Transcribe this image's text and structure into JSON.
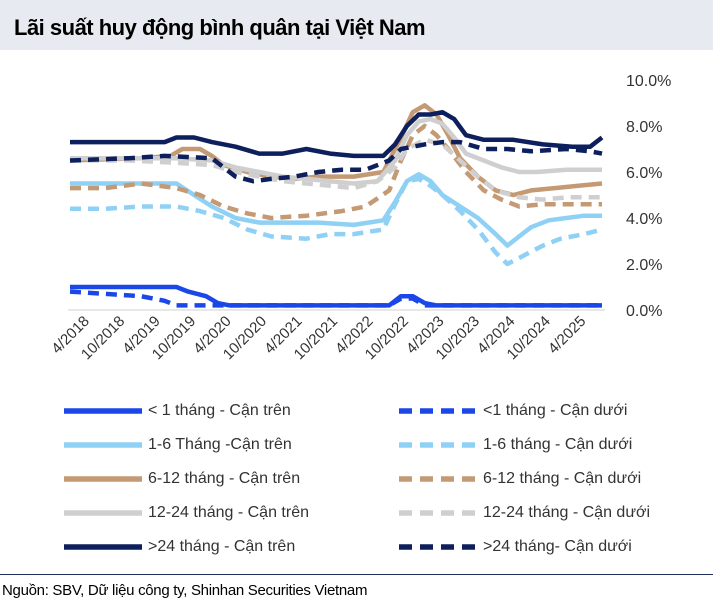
{
  "chart_data": {
    "type": "line",
    "title": "Lãi suất huy động bình quân tại Việt Nam",
    "ylim": [
      0,
      10
    ],
    "y_ticks": [
      "0.0%",
      "2.0%",
      "4.0%",
      "6.0%",
      "8.0%",
      "10.0%"
    ],
    "x_tick_labels": [
      "4/2018",
      "10/2018",
      "4/2019",
      "10/2019",
      "4/2020",
      "10/2020",
      "4/2021",
      "10/2021",
      "4/2022",
      "10/2022",
      "4/2023",
      "10/2023",
      "4/2024",
      "10/2024",
      "4/2025"
    ],
    "x_tick_positions": [
      0,
      6,
      12,
      18,
      24,
      30,
      36,
      42,
      48,
      54,
      60,
      66,
      72,
      78,
      84
    ],
    "x_range": [
      0,
      90
    ],
    "series": [
      {
        "name": "< 1 tháng - Cận trên",
        "color": "#1a47e8",
        "dashed": false,
        "points": [
          [
            0,
            1.0
          ],
          [
            18,
            1.0
          ],
          [
            20,
            0.8
          ],
          [
            23,
            0.6
          ],
          [
            25,
            0.3
          ],
          [
            27,
            0.2
          ],
          [
            54,
            0.2
          ],
          [
            56,
            0.6
          ],
          [
            58,
            0.6
          ],
          [
            60,
            0.3
          ],
          [
            62,
            0.2
          ],
          [
            90,
            0.2
          ]
        ]
      },
      {
        "name": "<1 tháng - Cận dưới",
        "color": "#1a47e8",
        "dashed": true,
        "points": [
          [
            0,
            0.8
          ],
          [
            12,
            0.6
          ],
          [
            16,
            0.4
          ],
          [
            18,
            0.2
          ],
          [
            54,
            0.2
          ],
          [
            56,
            0.5
          ],
          [
            58,
            0.5
          ],
          [
            60,
            0.2
          ],
          [
            90,
            0.2
          ]
        ]
      },
      {
        "name": "1-6 Tháng -Cận trên",
        "color": "#8fd0f5",
        "dashed": false,
        "points": [
          [
            0,
            5.5
          ],
          [
            18,
            5.5
          ],
          [
            21,
            5.0
          ],
          [
            24,
            4.5
          ],
          [
            28,
            4.0
          ],
          [
            32,
            3.8
          ],
          [
            42,
            3.8
          ],
          [
            48,
            3.7
          ],
          [
            53,
            3.9
          ],
          [
            55,
            4.7
          ],
          [
            57,
            5.6
          ],
          [
            59,
            5.9
          ],
          [
            61,
            5.6
          ],
          [
            63,
            5.0
          ],
          [
            66,
            4.5
          ],
          [
            69,
            4.0
          ],
          [
            72,
            3.3
          ],
          [
            74,
            2.8
          ],
          [
            76,
            3.2
          ],
          [
            78,
            3.6
          ],
          [
            81,
            3.9
          ],
          [
            84,
            4.0
          ],
          [
            87,
            4.1
          ],
          [
            90,
            4.1
          ]
        ]
      },
      {
        "name": "1-6 tháng - Cận dưới",
        "color": "#8fd0f5",
        "dashed": true,
        "points": [
          [
            0,
            4.4
          ],
          [
            6,
            4.4
          ],
          [
            12,
            4.5
          ],
          [
            18,
            4.5
          ],
          [
            22,
            4.3
          ],
          [
            26,
            4.0
          ],
          [
            30,
            3.5
          ],
          [
            34,
            3.2
          ],
          [
            40,
            3.1
          ],
          [
            44,
            3.3
          ],
          [
            48,
            3.3
          ],
          [
            53,
            3.5
          ],
          [
            55,
            4.6
          ],
          [
            57,
            5.6
          ],
          [
            59,
            5.7
          ],
          [
            61,
            5.4
          ],
          [
            63,
            5.0
          ],
          [
            66,
            4.3
          ],
          [
            69,
            3.5
          ],
          [
            72,
            2.5
          ],
          [
            74,
            2.0
          ],
          [
            77,
            2.4
          ],
          [
            80,
            2.8
          ],
          [
            83,
            3.1
          ],
          [
            87,
            3.3
          ],
          [
            90,
            3.5
          ]
        ]
      },
      {
        "name": "6-12 tháng - Cận trên",
        "color": "#c49a74",
        "dashed": false,
        "points": [
          [
            0,
            6.5
          ],
          [
            12,
            6.6
          ],
          [
            17,
            6.7
          ],
          [
            19,
            7.0
          ],
          [
            22,
            7.0
          ],
          [
            24,
            6.7
          ],
          [
            26,
            6.3
          ],
          [
            30,
            6.0
          ],
          [
            34,
            5.8
          ],
          [
            38,
            5.7
          ],
          [
            42,
            5.8
          ],
          [
            48,
            5.8
          ],
          [
            53,
            6.0
          ],
          [
            56,
            7.5
          ],
          [
            58,
            8.6
          ],
          [
            60,
            8.9
          ],
          [
            62,
            8.5
          ],
          [
            64,
            7.6
          ],
          [
            66,
            6.6
          ],
          [
            69,
            5.8
          ],
          [
            72,
            5.2
          ],
          [
            75,
            5.0
          ],
          [
            78,
            5.2
          ],
          [
            82,
            5.3
          ],
          [
            86,
            5.4
          ],
          [
            90,
            5.5
          ]
        ]
      },
      {
        "name": "6-12 tháng - Cận dưới",
        "color": "#c49a74",
        "dashed": true,
        "points": [
          [
            0,
            5.3
          ],
          [
            6,
            5.3
          ],
          [
            12,
            5.5
          ],
          [
            18,
            5.3
          ],
          [
            22,
            5.0
          ],
          [
            26,
            4.5
          ],
          [
            30,
            4.2
          ],
          [
            34,
            4.0
          ],
          [
            40,
            4.1
          ],
          [
            46,
            4.3
          ],
          [
            50,
            4.5
          ],
          [
            54,
            5.2
          ],
          [
            56,
            6.5
          ],
          [
            58,
            7.6
          ],
          [
            60,
            8.0
          ],
          [
            62,
            7.6
          ],
          [
            64,
            7.0
          ],
          [
            67,
            6.0
          ],
          [
            70,
            5.2
          ],
          [
            73,
            4.8
          ],
          [
            76,
            4.5
          ],
          [
            80,
            4.6
          ],
          [
            86,
            4.6
          ],
          [
            90,
            4.6
          ]
        ]
      },
      {
        "name": "12-24 tháng - Cận trên",
        "color": "#cfcfcf",
        "dashed": false,
        "points": [
          [
            0,
            6.6
          ],
          [
            12,
            6.6
          ],
          [
            18,
            6.6
          ],
          [
            24,
            6.5
          ],
          [
            28,
            6.2
          ],
          [
            32,
            6.0
          ],
          [
            36,
            5.8
          ],
          [
            40,
            5.7
          ],
          [
            44,
            5.6
          ],
          [
            48,
            5.5
          ],
          [
            52,
            5.6
          ],
          [
            55,
            6.5
          ],
          [
            57,
            7.6
          ],
          [
            59,
            8.2
          ],
          [
            61,
            8.3
          ],
          [
            63,
            8.1
          ],
          [
            65,
            7.5
          ],
          [
            67,
            6.8
          ],
          [
            70,
            6.5
          ],
          [
            73,
            6.2
          ],
          [
            76,
            6.0
          ],
          [
            79,
            6.0
          ],
          [
            84,
            6.1
          ],
          [
            90,
            6.1
          ]
        ]
      },
      {
        "name": "12-24 tháng - Cận dưới",
        "color": "#cfcfcf",
        "dashed": true,
        "points": [
          [
            0,
            6.5
          ],
          [
            10,
            6.5
          ],
          [
            18,
            6.4
          ],
          [
            24,
            6.3
          ],
          [
            28,
            6.0
          ],
          [
            32,
            5.8
          ],
          [
            36,
            5.6
          ],
          [
            40,
            5.5
          ],
          [
            44,
            5.4
          ],
          [
            48,
            5.3
          ],
          [
            52,
            5.6
          ],
          [
            55,
            6.2
          ],
          [
            57,
            7.0
          ],
          [
            60,
            7.4
          ],
          [
            63,
            7.2
          ],
          [
            66,
            6.5
          ],
          [
            69,
            5.8
          ],
          [
            72,
            5.2
          ],
          [
            76,
            4.9
          ],
          [
            80,
            4.8
          ],
          [
            84,
            4.9
          ],
          [
            90,
            4.9
          ]
        ]
      },
      {
        "name": ">24 tháng - Cận trên",
        "color": "#0d1f5c",
        "dashed": false,
        "points": [
          [
            0,
            7.3
          ],
          [
            16,
            7.3
          ],
          [
            18,
            7.5
          ],
          [
            21,
            7.5
          ],
          [
            24,
            7.3
          ],
          [
            28,
            7.1
          ],
          [
            32,
            6.8
          ],
          [
            36,
            6.8
          ],
          [
            40,
            7.0
          ],
          [
            44,
            6.8
          ],
          [
            48,
            6.7
          ],
          [
            53,
            6.7
          ],
          [
            55,
            7.2
          ],
          [
            57,
            8.0
          ],
          [
            59,
            8.5
          ],
          [
            61,
            8.5
          ],
          [
            63,
            8.6
          ],
          [
            65,
            8.3
          ],
          [
            67,
            7.6
          ],
          [
            70,
            7.4
          ],
          [
            75,
            7.4
          ],
          [
            80,
            7.2
          ],
          [
            85,
            7.1
          ],
          [
            88,
            7.1
          ],
          [
            90,
            7.5
          ]
        ]
      },
      {
        "name": ">24 tháng- Cận dưới",
        "color": "#0d1f5c",
        "dashed": true,
        "points": [
          [
            0,
            6.5
          ],
          [
            10,
            6.6
          ],
          [
            16,
            6.7
          ],
          [
            24,
            6.6
          ],
          [
            26,
            6.2
          ],
          [
            28,
            5.8
          ],
          [
            31,
            5.6
          ],
          [
            34,
            5.7
          ],
          [
            38,
            5.8
          ],
          [
            42,
            6.0
          ],
          [
            46,
            6.1
          ],
          [
            50,
            6.1
          ],
          [
            54,
            6.5
          ],
          [
            56,
            7.0
          ],
          [
            60,
            7.2
          ],
          [
            63,
            7.3
          ],
          [
            66,
            7.3
          ],
          [
            70,
            7.0
          ],
          [
            74,
            7.0
          ],
          [
            78,
            6.9
          ],
          [
            84,
            7.0
          ],
          [
            88,
            6.9
          ],
          [
            90,
            6.8
          ]
        ]
      }
    ]
  },
  "source": "Nguồn: SBV, Dữ liệu công ty, Shinhan Securities Vietnam"
}
